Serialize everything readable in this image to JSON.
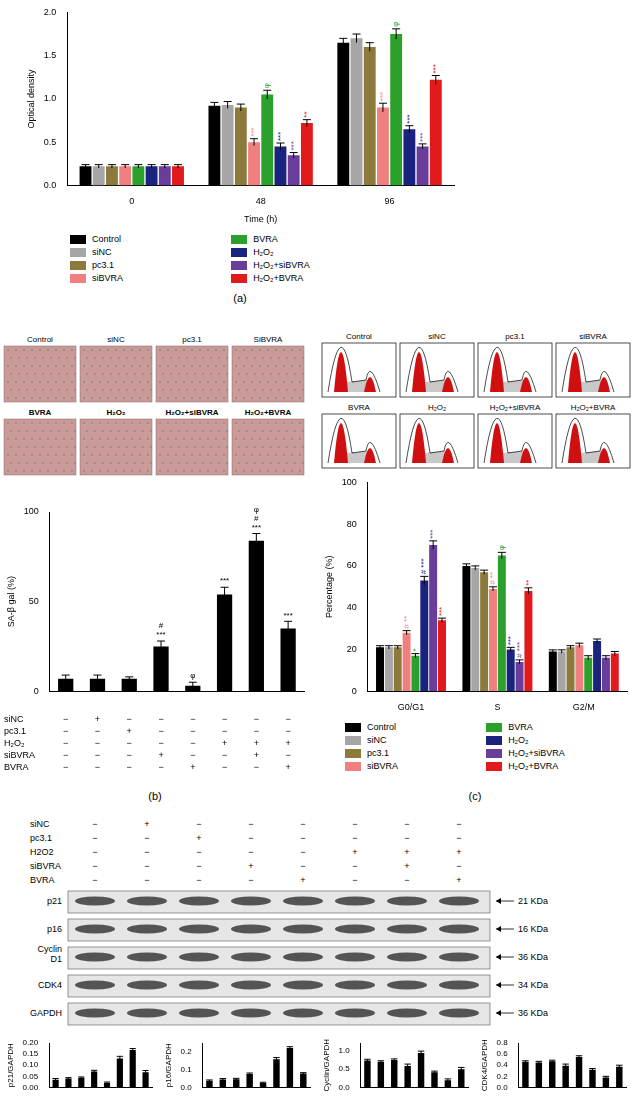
{
  "chart_data": [
    {
      "type": "bar",
      "panel": "(a)",
      "categories": [
        "0",
        "48",
        "96"
      ],
      "x_label": "Time (h)",
      "y_label": "Optical density",
      "ylim": [
        0,
        2
      ],
      "yticks": [
        {
          "value": 0,
          "label": "0.0"
        },
        {
          "value": 0.5,
          "label": "0.5"
        },
        {
          "value": 1,
          "label": "1.0"
        },
        {
          "value": 1.5,
          "label": "1.5"
        },
        {
          "value": 2,
          "label": "2.0"
        }
      ],
      "grid": false,
      "legend": "bottom",
      "series": [
        {
          "name": "Control",
          "color": "#000000",
          "values": [
            0.22,
            0.92,
            1.65
          ],
          "errors": [
            0.02,
            0.04,
            0.05
          ],
          "annotations": [
            null,
            null,
            null
          ]
        },
        {
          "name": "siNC",
          "color": "#a6a6a6",
          "values": [
            0.22,
            0.93,
            1.7
          ],
          "errors": [
            0.02,
            0.04,
            0.05
          ],
          "annotations": [
            null,
            null,
            null
          ]
        },
        {
          "name": "pc3.1",
          "color": "#8c7a3c",
          "values": [
            0.22,
            0.9,
            1.6
          ],
          "errors": [
            0.02,
            0.04,
            0.05
          ],
          "annotations": [
            null,
            null,
            null
          ]
        },
        {
          "name": "siBVRA",
          "color": "#f08080",
          "values": [
            0.22,
            0.5,
            0.9
          ],
          "errors": [
            0.02,
            0.04,
            0.05
          ],
          "annotations": [
            null,
            "***",
            "***"
          ]
        },
        {
          "name": "BVRA",
          "color": "#2ca02c",
          "values": [
            0.22,
            1.05,
            1.75
          ],
          "errors": [
            0.02,
            0.05,
            0.06
          ],
          "annotations": [
            null,
            "φ",
            "φ"
          ]
        },
        {
          "name": "H₂O₂",
          "color": "#1a237e",
          "values": [
            0.22,
            0.45,
            0.65
          ],
          "errors": [
            0.02,
            0.04,
            0.04
          ],
          "annotations": [
            null,
            "***",
            "***"
          ]
        },
        {
          "name": "H₂O₂+siBVRA",
          "color": "#6a3d9a",
          "values": [
            0.22,
            0.35,
            0.45
          ],
          "errors": [
            0.02,
            0.03,
            0.03
          ],
          "annotations": [
            null,
            "***",
            "***"
          ]
        },
        {
          "name": "H₂O₂+BVRA",
          "color": "#e31a1c",
          "values": [
            0.22,
            0.72,
            1.22
          ],
          "errors": [
            0.02,
            0.04,
            0.05
          ],
          "annotations": [
            null,
            "**",
            "***"
          ]
        }
      ]
    },
    {
      "type": "bar",
      "panel": "(b)",
      "categories": [
        null,
        null,
        null,
        null,
        null,
        null,
        null,
        null
      ],
      "y_label": "SA-β gal (%)",
      "ylim": [
        0,
        100
      ],
      "yticks": [
        0,
        50,
        100
      ],
      "grid": false,
      "color": "#000000",
      "values": [
        7,
        7,
        7,
        25,
        3,
        54,
        84,
        35
      ],
      "errors": [
        2,
        2,
        1,
        3,
        2,
        4,
        4,
        4
      ],
      "annotations": [
        null,
        null,
        null,
        "# ***",
        "φ",
        "***",
        "φ # ***",
        "***"
      ],
      "condition_table": [
        {
          "name": "siNC",
          "marks": [
            "−",
            "+",
            "−",
            "−",
            "−",
            "−",
            "−",
            "−"
          ]
        },
        {
          "name": "pc3.1",
          "marks": [
            "−",
            "−",
            "+",
            "−",
            "−",
            "−",
            "−",
            "−"
          ]
        },
        {
          "name": "H₂O₂",
          "marks": [
            "−",
            "−",
            "−",
            "−",
            "−",
            "+",
            "+",
            "+"
          ]
        },
        {
          "name": "siBVRA",
          "marks": [
            "−",
            "−",
            "−",
            "+",
            "−",
            "−",
            "+",
            "−"
          ]
        },
        {
          "name": "BVRA",
          "marks": [
            "−",
            "−",
            "−",
            "−",
            "+",
            "−",
            "−",
            "+"
          ]
        }
      ]
    },
    {
      "type": "bar",
      "panel": "(c)",
      "categories": [
        "G0/G1",
        "S",
        "G2/M"
      ],
      "y_label": "Percentage (%)",
      "ylim": [
        0,
        100
      ],
      "yticks": [
        0,
        20,
        40,
        60,
        80,
        100
      ],
      "grid": false,
      "legend": "bottom",
      "series": [
        {
          "name": "Control",
          "color": "#000000",
          "values": [
            21,
            60,
            19
          ],
          "errors": [
            0.8,
            1,
            0.8
          ],
          "annotations": [
            null,
            null,
            null
          ]
        },
        {
          "name": "siNC",
          "color": "#a6a6a6",
          "values": [
            21,
            59,
            19
          ],
          "errors": [
            0.8,
            1,
            0.8
          ],
          "annotations": [
            null,
            null,
            null
          ]
        },
        {
          "name": "pc3.1",
          "color": "#8c7a3c",
          "values": [
            21,
            57,
            21
          ],
          "errors": [
            0.8,
            1,
            0.8
          ],
          "annotations": [
            null,
            null,
            null
          ]
        },
        {
          "name": "siBVRA",
          "color": "#f08080",
          "values": [
            28,
            49,
            22
          ],
          "errors": [
            1,
            1,
            1
          ],
          "annotations": [
            "# **",
            "# **",
            null
          ]
        },
        {
          "name": "BVRA",
          "color": "#2ca02c",
          "values": [
            17,
            65,
            16
          ],
          "errors": [
            1,
            1.5,
            1
          ],
          "annotations": [
            "*",
            "φ",
            null
          ]
        },
        {
          "name": "H₂O₂",
          "color": "#1a237e",
          "values": [
            53,
            20,
            24
          ],
          "errors": [
            2,
            1,
            1
          ],
          "annotations": [
            "# ***",
            "***",
            null
          ]
        },
        {
          "name": "H₂O₂+siBVRA",
          "color": "#6a3d9a",
          "values": [
            70,
            14,
            16
          ],
          "errors": [
            2,
            1,
            1
          ],
          "annotations": [
            "***",
            "# ***",
            null
          ]
        },
        {
          "name": "H₂O₂+BVRA",
          "color": "#e31a1c",
          "values": [
            34,
            48,
            18
          ],
          "errors": [
            1,
            1.5,
            1
          ],
          "annotations": [
            "***",
            "**",
            null
          ]
        }
      ]
    },
    {
      "type": "bar",
      "categories": [
        null,
        null,
        null,
        null,
        null,
        null,
        null,
        null
      ],
      "y_label": "p21/GAPDH",
      "ylim": [
        0,
        0.2
      ],
      "yticks": [
        {
          "value": 0,
          "label": "0.00"
        },
        {
          "value": 0.05,
          "label": "0.05"
        },
        {
          "value": 0.1,
          "label": "0.10"
        },
        {
          "value": 0.15,
          "label": "0.15"
        },
        {
          "value": 0.2,
          "label": "0.20"
        }
      ],
      "grid": false,
      "color": "#000000",
      "values": [
        0.035,
        0.04,
        0.043,
        0.072,
        0.02,
        0.13,
        0.168,
        0.068
      ],
      "errors": [
        0.005,
        0.004,
        0.004,
        0.005,
        0.004,
        0.01,
        0.007,
        0.008
      ]
    },
    {
      "type": "bar",
      "categories": [
        null,
        null,
        null,
        null,
        null,
        null,
        null,
        null
      ],
      "y_label": "p16/GAPDH",
      "ylim": [
        0,
        0.25
      ],
      "yticks": [
        {
          "value": 0,
          "label": "0.0"
        },
        {
          "value": 0.1,
          "label": "0.1"
        },
        {
          "value": 0.2,
          "label": "0.2"
        }
      ],
      "grid": false,
      "color": "#000000",
      "values": [
        0.038,
        0.045,
        0.046,
        0.075,
        0.025,
        0.158,
        0.222,
        0.078
      ],
      "errors": [
        0.004,
        0.005,
        0.005,
        0.006,
        0.004,
        0.01,
        0.007,
        0.005
      ]
    },
    {
      "type": "bar",
      "categories": [
        null,
        null,
        null,
        null,
        null,
        null,
        null,
        null
      ],
      "y_label": "Cyclin/GAPDH",
      "ylim": [
        0,
        1.2
      ],
      "yticks": [
        {
          "value": 0,
          "label": "0.0"
        },
        {
          "value": 0.5,
          "label": "0.5"
        },
        {
          "value": 1,
          "label": "1.0"
        }
      ],
      "grid": false,
      "color": "#000000",
      "values": [
        0.73,
        0.69,
        0.74,
        0.58,
        0.93,
        0.41,
        0.19,
        0.49
      ],
      "errors": [
        0.03,
        0.03,
        0.03,
        0.05,
        0.05,
        0.03,
        0.04,
        0.05
      ]
    },
    {
      "type": "bar",
      "categories": [
        null,
        null,
        null,
        null,
        null,
        null,
        null,
        null
      ],
      "y_label": "CDK4/GAPDH",
      "ylim": [
        0,
        0.8
      ],
      "yticks": [
        {
          "value": 0,
          "label": "0.0"
        },
        {
          "value": 0.2,
          "label": "0.2"
        },
        {
          "value": 0.4,
          "label": "0.4"
        },
        {
          "value": 0.6,
          "label": "0.6"
        },
        {
          "value": 0.8,
          "label": "0.8"
        }
      ],
      "grid": false,
      "color": "#000000",
      "values": [
        0.46,
        0.45,
        0.47,
        0.39,
        0.55,
        0.32,
        0.18,
        0.37
      ],
      "errors": [
        0.02,
        0.02,
        0.02,
        0.03,
        0.02,
        0.02,
        0.02,
        0.03
      ]
    }
  ],
  "micrographs": {
    "labels": [
      "Control",
      "siNC",
      "pc3.1",
      "SiBVRA",
      "BVRA",
      "H₂O₂",
      "H₂O₂+siBVRA",
      "H₂O₂+BVRA"
    ]
  },
  "flow_histograms": {
    "labels": [
      "Control",
      "siNC",
      "pc3.1",
      "siBVRA",
      "BVRA",
      "H₂O₂",
      "H₂O₂+siBVRA",
      "H₂O₂+BVRA"
    ]
  },
  "western_blot": {
    "conditions": [
      {
        "name": "siNC",
        "marks": [
          "−",
          "+",
          "−",
          "−",
          "−",
          "−",
          "−",
          "−"
        ]
      },
      {
        "name": "pc3.1",
        "marks": [
          "−",
          "−",
          "+",
          "−",
          "−",
          "−",
          "−",
          "−"
        ]
      },
      {
        "name": "H2O2",
        "marks": [
          "−",
          "−",
          "−",
          "−",
          "−",
          "+",
          "+",
          "+"
        ]
      },
      {
        "name": "siBVRA",
        "marks": [
          "−",
          "−",
          "−",
          "+",
          "−",
          "−",
          "+",
          "−"
        ]
      },
      {
        "name": "BVRA",
        "marks": [
          "−",
          "−",
          "−",
          "−",
          "+",
          "−",
          "−",
          "+"
        ]
      }
    ],
    "bands": [
      {
        "name": "p21",
        "size": "21 KDa"
      },
      {
        "name": "p16",
        "size": "16 KDa"
      },
      {
        "name": "Cyclin D1",
        "size": "36 KDa"
      },
      {
        "name": "CDK4",
        "size": "34 KDa"
      },
      {
        "name": "GAPDH",
        "size": "36 KDa"
      }
    ]
  }
}
